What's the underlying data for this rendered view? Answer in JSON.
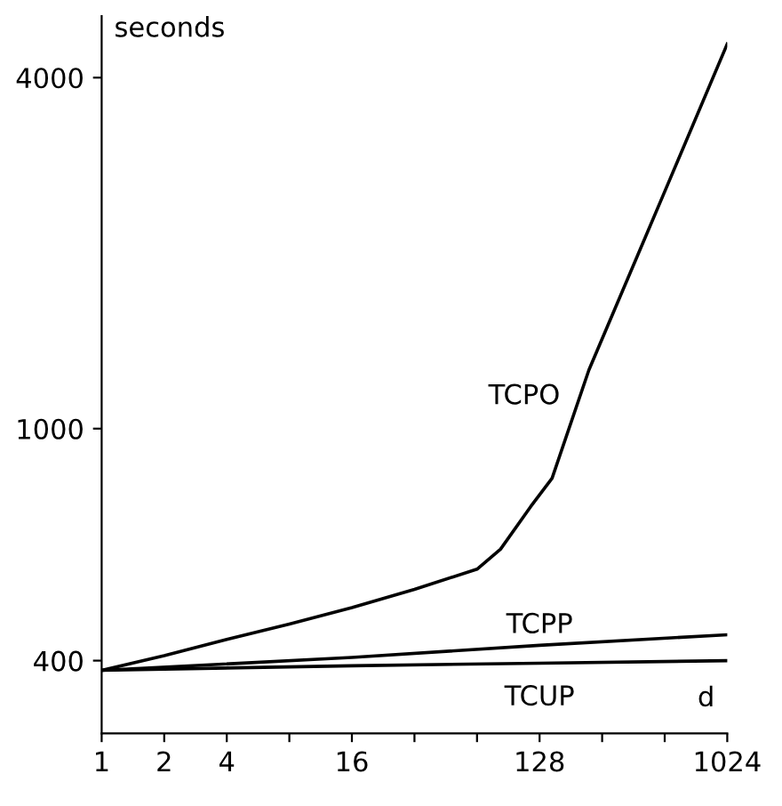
{
  "chart_data": {
    "type": "line",
    "xlabel": "d",
    "ylabel": "seconds",
    "log": "xy",
    "grid": false,
    "legend": false,
    "marker": "none",
    "line_style": "solid",
    "xlim": [
      1,
      1024
    ],
    "ylim": [
      300,
      5100
    ],
    "xticks": [
      1,
      2,
      4,
      {
        "value": 8,
        "label": null
      },
      16,
      {
        "value": 32,
        "label": null
      },
      {
        "value": 64,
        "label": null
      },
      128,
      {
        "value": 256,
        "label": null
      },
      {
        "value": 512,
        "label": null
      },
      1024
    ],
    "yticks": [
      400,
      1000,
      4000
    ],
    "series": [
      {
        "name": "TCPO",
        "color": "#000000",
        "x": [
          1,
          2,
          4,
          8,
          16,
          32,
          64,
          83,
          116,
          147,
          221,
          512,
          1024
        ],
        "values": [
          385,
          408,
          435,
          462,
          493,
          530,
          574,
          621,
          735,
          822,
          1260,
          2550,
          4570
        ]
      },
      {
        "name": "TCPP",
        "color": "#000000",
        "x": [
          1,
          16,
          128,
          1024
        ],
        "values": [
          385,
          405,
          425,
          443
        ]
      },
      {
        "name": "TCUP",
        "color": "#000000",
        "x": [
          1,
          16,
          128,
          1024
        ],
        "values": [
          385,
          392,
          396,
          400
        ]
      }
    ]
  }
}
